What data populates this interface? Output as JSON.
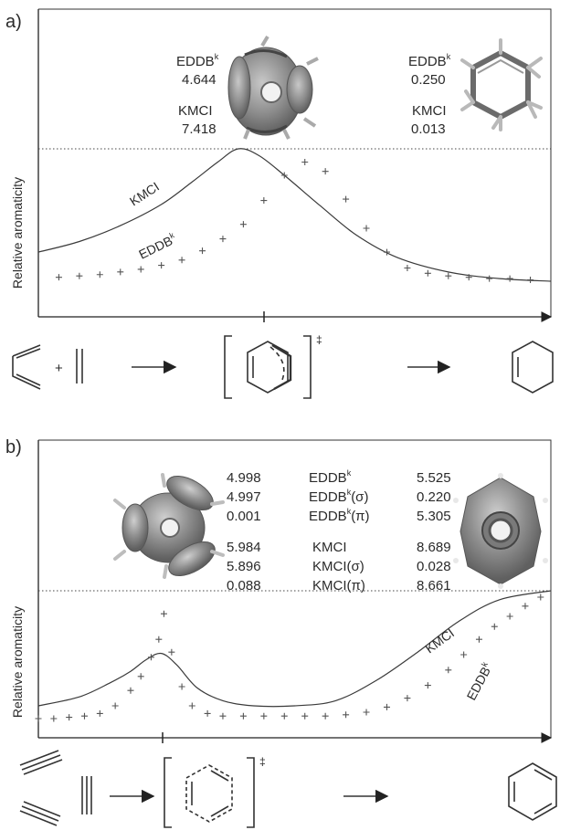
{
  "panels": [
    {
      "label": "a)",
      "ylabel": "Relative aromaticity",
      "values": {
        "left": {
          "eddb_label": "EDDB",
          "eddb_value": "4.644",
          "kmci_label": "KMCI",
          "kmci_value": "7.418"
        },
        "right": {
          "eddb_label": "EDDB",
          "eddb_value": "0.250",
          "kmci_label": "KMCI",
          "kmci_value": "0.013"
        }
      },
      "curve_labels": {
        "kmci": "KMCI",
        "eddb": "EDDB"
      },
      "ts_mark": "‡"
    },
    {
      "label": "b)",
      "ylabel": "Relative aromaticity",
      "table": {
        "rows": [
          {
            "ts": "4.998",
            "name": "EDDB",
            "sup": "k",
            "sub": "",
            "product": "5.525"
          },
          {
            "ts": "4.997",
            "name": "EDDB",
            "sup": "k",
            "sub": "(σ)",
            "product": "0.220"
          },
          {
            "ts": "0.001",
            "name": "EDDB",
            "sup": "k",
            "sub": "(π)",
            "product": "5.305"
          },
          {
            "ts": "5.984",
            "name": "KMCI",
            "sup": "",
            "sub": "",
            "product": "8.689"
          },
          {
            "ts": "5.896",
            "name": "KMCI",
            "sup": "",
            "sub": "(σ)",
            "product": "0.028"
          },
          {
            "ts": "0.088",
            "name": "KMCI",
            "sup": "",
            "sub": "(π)",
            "product": "8.661"
          }
        ]
      },
      "curve_labels": {
        "kmci": "KMCI",
        "eddb": "EDDB"
      },
      "ts_mark": "‡"
    }
  ],
  "sup_k": "k",
  "colors": {
    "curve": "#3a3a3a",
    "marker": "#555555",
    "orbital": "#8a8a8a"
  },
  "chart_data": [
    {
      "type": "line",
      "panel": "a)",
      "ylabel": "Relative aromaticity",
      "ylim": [
        0,
        1
      ],
      "xlim": [
        0,
        1
      ],
      "ts_position": 0.39,
      "series": [
        {
          "name": "KMCI",
          "style": "line",
          "x": [
            0,
            0.08,
            0.16,
            0.24,
            0.3,
            0.35,
            0.39,
            0.43,
            0.48,
            0.55,
            0.62,
            0.7,
            0.8,
            0.9,
            1.0
          ],
          "y": [
            0.22,
            0.3,
            0.42,
            0.58,
            0.75,
            0.9,
            1.0,
            0.95,
            0.8,
            0.57,
            0.35,
            0.18,
            0.07,
            0.02,
            0.0
          ]
        },
        {
          "name": "EDDB",
          "style": "markers",
          "x": [
            0.04,
            0.08,
            0.12,
            0.16,
            0.2,
            0.24,
            0.28,
            0.32,
            0.36,
            0.4,
            0.44,
            0.48,
            0.52,
            0.56,
            0.6,
            0.64,
            0.68,
            0.72,
            0.76,
            0.8,
            0.84,
            0.88,
            0.92,
            0.96
          ],
          "y": [
            0.03,
            0.04,
            0.05,
            0.07,
            0.09,
            0.12,
            0.16,
            0.23,
            0.32,
            0.43,
            0.61,
            0.8,
            0.9,
            0.83,
            0.62,
            0.4,
            0.22,
            0.1,
            0.06,
            0.04,
            0.03,
            0.02,
            0.02,
            0.01
          ]
        }
      ]
    },
    {
      "type": "line",
      "panel": "b)",
      "ylabel": "Relative aromaticity",
      "ylim": [
        0,
        1
      ],
      "xlim": [
        0,
        1
      ],
      "ts_position": 0.242,
      "series": [
        {
          "name": "KMCI",
          "style": "line",
          "x": [
            0,
            0.08,
            0.14,
            0.18,
            0.21,
            0.24,
            0.27,
            0.31,
            0.36,
            0.42,
            0.5,
            0.58,
            0.66,
            0.74,
            0.82,
            0.9,
            1.0
          ],
          "y": [
            0.1,
            0.17,
            0.28,
            0.37,
            0.46,
            0.51,
            0.42,
            0.24,
            0.14,
            0.1,
            0.1,
            0.14,
            0.3,
            0.52,
            0.76,
            0.93,
            1.0
          ]
        },
        {
          "name": "EDDB",
          "style": "markers",
          "x": [
            0.0,
            0.03,
            0.06,
            0.09,
            0.12,
            0.15,
            0.18,
            0.2,
            0.22,
            0.235,
            0.245,
            0.26,
            0.28,
            0.3,
            0.33,
            0.36,
            0.4,
            0.44,
            0.48,
            0.52,
            0.56,
            0.6,
            0.64,
            0.68,
            0.72,
            0.76,
            0.8,
            0.83,
            0.86,
            0.89,
            0.92,
            0.95,
            0.98
          ],
          "y": [
            0.0,
            0.0,
            0.01,
            0.02,
            0.04,
            0.1,
            0.22,
            0.33,
            0.48,
            0.62,
            0.82,
            0.52,
            0.25,
            0.1,
            0.04,
            0.02,
            0.02,
            0.02,
            0.02,
            0.02,
            0.02,
            0.03,
            0.05,
            0.09,
            0.16,
            0.26,
            0.38,
            0.5,
            0.62,
            0.72,
            0.8,
            0.88,
            0.95
          ]
        }
      ]
    }
  ]
}
